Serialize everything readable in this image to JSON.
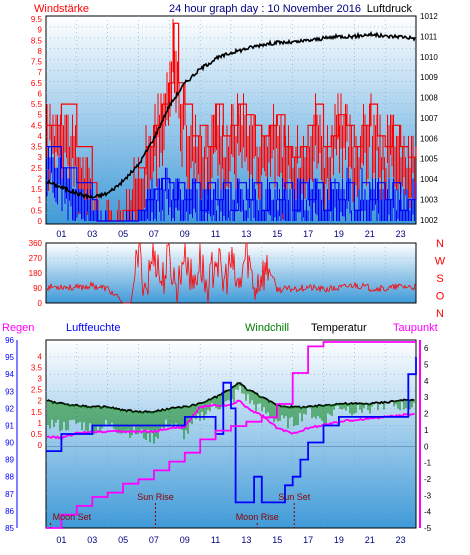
{
  "colors": {
    "red": "#ff0000",
    "blue": "#0000ff",
    "navy": "#000080",
    "black": "#000000",
    "green": "#008000",
    "magenta": "#ff00ff",
    "panel_top": "#ffffff",
    "panel_bottom": "#3f9ad8"
  },
  "chart_data": [
    {
      "type": "line",
      "id": "wind_pressure",
      "title": "24 hour graph day : 10 November 2016",
      "left_label": "Windstärke",
      "right_label": "Luftdruck",
      "x_ticks": [
        "01",
        "03",
        "05",
        "07",
        "09",
        "11",
        "13",
        "15",
        "17",
        "19",
        "21",
        "23"
      ],
      "y_left_ticks": [
        "0",
        "0.5",
        "1",
        "1.5",
        "2",
        "2.5",
        "3",
        "3.5",
        "4",
        "4.5",
        "5",
        "5.5",
        "6",
        "6.5",
        "7",
        "7.5",
        "8",
        "8.5",
        "9",
        "9.5"
      ],
      "y_right_ticks": [
        "1012",
        "1011",
        "1010",
        "1009",
        "1008",
        "1007",
        "1006",
        "1005",
        "1004",
        "1003",
        "1002"
      ],
      "y_left_range": [
        0,
        9.5
      ],
      "y_right_range": [
        1001.8,
        1012
      ],
      "x_range": [
        0,
        24
      ],
      "grid": true,
      "series": [
        {
          "color_key": "red",
          "style": "hatched",
          "x": [
            0,
            1,
            2,
            3,
            3.3,
            4,
            5,
            6,
            6.5,
            7,
            7.5,
            8,
            8.3,
            8.6,
            9,
            9.5,
            10,
            10.5,
            11,
            11.5,
            12,
            12.5,
            13,
            13.5,
            14,
            14.5,
            15,
            15.5,
            16,
            16.5,
            17,
            17.5,
            18,
            18.5,
            19,
            19.5,
            20,
            20.5,
            21,
            21.5,
            22,
            22.5,
            23,
            23.5,
            24
          ],
          "y": [
            4.5,
            5.5,
            3.5,
            1.8,
            0,
            0,
            0.5,
            2.5,
            3.5,
            4.5,
            5.5,
            6.5,
            9.3,
            6.5,
            5.5,
            4,
            4.5,
            3.5,
            5.5,
            4,
            4.5,
            5.5,
            5,
            4.5,
            4,
            4.5,
            5,
            3.5,
            3,
            3.5,
            4.5,
            5.5,
            3.5,
            4,
            5,
            4.5,
            3.5,
            4.5,
            5.5,
            4,
            3.5,
            4.5,
            3.5,
            3,
            3.5
          ]
        },
        {
          "color_key": "blue",
          "style": "hatched",
          "x": [
            0,
            1,
            2,
            3,
            3.3,
            4,
            5,
            6,
            6.5,
            7,
            7.5,
            8,
            8.3,
            8.6,
            9,
            9.5,
            10,
            10.5,
            11,
            11.5,
            12,
            12.5,
            13,
            13.5,
            14,
            14.5,
            15,
            15.5,
            16,
            16.5,
            17,
            17.5,
            18,
            18.5,
            19,
            19.5,
            20,
            20.5,
            21,
            21.5,
            22,
            22.5,
            23,
            23.5,
            24
          ],
          "y": [
            3.5,
            2.5,
            1.8,
            1,
            0,
            0,
            0,
            0.5,
            1,
            1.5,
            2,
            1.8,
            1,
            1.8,
            1,
            1.8,
            0.5,
            1.8,
            1,
            1.8,
            0.5,
            1.8,
            1,
            1.8,
            0.5,
            1.8,
            1,
            1.8,
            0.5,
            1.8,
            1,
            1.8,
            0.5,
            1.8,
            1,
            1.8,
            0.5,
            1.8,
            1,
            1.8,
            1,
            1.8,
            0.5,
            1,
            1.8
          ]
        },
        {
          "color_key": "black",
          "style": "line",
          "axis": "right",
          "x": [
            0,
            1,
            2,
            3,
            4,
            5,
            6,
            7,
            8,
            9,
            10,
            11,
            12,
            13,
            14,
            15,
            16,
            17,
            18,
            19,
            20,
            21,
            22,
            23,
            24
          ],
          "y": [
            1003.9,
            1003.6,
            1003.3,
            1003.1,
            1003.3,
            1003.9,
            1004.7,
            1006.0,
            1007.6,
            1008.7,
            1009.4,
            1009.9,
            1010.2,
            1010.4,
            1010.6,
            1010.7,
            1010.7,
            1010.8,
            1010.9,
            1011.0,
            1011.0,
            1011.1,
            1011.0,
            1011.0,
            1010.9
          ]
        }
      ]
    },
    {
      "type": "line",
      "id": "wind_direction",
      "right_labels": [
        "N",
        "W",
        "S",
        "O",
        "N"
      ],
      "y_ticks": [
        "360",
        "270",
        "180",
        "90",
        "0"
      ],
      "y_range": [
        0,
        360
      ],
      "x_range": [
        0,
        24
      ],
      "grid": true,
      "series": [
        {
          "color_key": "red",
          "style": "line",
          "x": [
            0,
            1,
            2,
            3,
            4,
            5,
            5.5,
            6,
            6.5,
            7,
            7.5,
            8,
            8.5,
            9,
            9.5,
            10,
            10.5,
            11,
            11.5,
            12,
            12.5,
            13,
            13.5,
            14,
            14.5,
            15,
            16,
            17,
            18,
            19,
            20,
            21,
            22,
            23,
            24
          ],
          "y": [
            95,
            100,
            90,
            105,
            85,
            0,
            0,
            300,
            80,
            330,
            120,
            280,
            60,
            340,
            100,
            260,
            50,
            300,
            110,
            240,
            70,
            320,
            90,
            180,
            200,
            80,
            85,
            95,
            80,
            90,
            110,
            90,
            85,
            100,
            95
          ]
        }
      ]
    },
    {
      "type": "line",
      "id": "humidity_temperature",
      "labels": {
        "regen": "Regen",
        "luftfeuchte": "Luftfeuchte",
        "windchill": "Windchill",
        "temperatur": "Temperatur",
        "taupunkt": "Taupunkt"
      },
      "x_ticks": [
        "01",
        "03",
        "05",
        "07",
        "09",
        "11",
        "13",
        "15",
        "17",
        "19",
        "21",
        "23"
      ],
      "y_left_ticks": [
        "96",
        "95",
        "94",
        "93",
        "92",
        "91",
        "90",
        "89",
        "88",
        "87",
        "86",
        "85"
      ],
      "y_left2_ticks": [
        "4",
        "3.5",
        "3",
        "2.5",
        "2",
        "1.5",
        "1",
        "0.5",
        "0"
      ],
      "y_right_ticks": [
        "6",
        "5",
        "4",
        "3",
        "2",
        "1",
        "0",
        "-1",
        "-2",
        "-3",
        "-4",
        "-5"
      ],
      "y_left_range": [
        85,
        96
      ],
      "y_right_range": [
        -5,
        6.5
      ],
      "x_range": [
        0,
        24
      ],
      "grid": true,
      "annotations": [
        {
          "text": "Moon Set",
          "x": 0.3
        },
        {
          "text": "Sun Rise",
          "x": 7.1
        },
        {
          "text": "Moon Rise",
          "x": 13.7
        },
        {
          "text": "Sun Set",
          "x": 16.1
        }
      ],
      "series": [
        {
          "name_key": "temperatur",
          "color_key": "black",
          "x": [
            0,
            1,
            2,
            3,
            4,
            5,
            6,
            7,
            8,
            9,
            10,
            11,
            12,
            12.5,
            13,
            13.5,
            14,
            15,
            16,
            17,
            18,
            19,
            20,
            21,
            22,
            23,
            24
          ],
          "y": [
            2.8,
            2.6,
            2.5,
            2.4,
            2.4,
            2.2,
            2.1,
            2.1,
            2.3,
            2.4,
            2.6,
            3.0,
            3.5,
            3.9,
            3.5,
            3.3,
            3.0,
            2.5,
            2.4,
            2.4,
            2.5,
            2.6,
            2.6,
            2.6,
            2.7,
            2.8,
            2.8
          ]
        },
        {
          "name_key": "windchill",
          "color_key": "green",
          "x": [
            0,
            1,
            2,
            3,
            4,
            5,
            6,
            7,
            8,
            9,
            10,
            11,
            12,
            12.5,
            13,
            13.5,
            14,
            15,
            16,
            17,
            18,
            19,
            20,
            21,
            22,
            23,
            24
          ],
          "y": [
            1.5,
            1.2,
            1.4,
            1.1,
            1.3,
            1.0,
            0.8,
            0.5,
            1.5,
            0.7,
            1.8,
            2.5,
            2.6,
            3.5,
            3.0,
            2.5,
            2.2,
            1.6,
            1.4,
            2.2,
            1.5,
            2.5,
            2.2,
            2.4,
            2.6,
            2.5,
            2.3
          ]
        },
        {
          "name_key": "taupunkt",
          "color_key": "magenta",
          "x": [
            0,
            1,
            2,
            3,
            4,
            5,
            6,
            7,
            8,
            9,
            10,
            11,
            12,
            12.5,
            13,
            13.5,
            14,
            15,
            16,
            17,
            18,
            19,
            20,
            21,
            22,
            23,
            24
          ],
          "y": [
            0.6,
            0.5,
            0.8,
            0.9,
            0.9,
            0.9,
            0.9,
            0.9,
            1.1,
            1.2,
            2.4,
            2.5,
            2.5,
            2.8,
            2.4,
            2.1,
            1.9,
            1.1,
            0.8,
            1.1,
            1.3,
            1.5,
            1.6,
            1.7,
            1.8,
            1.9,
            2.0
          ]
        },
        {
          "name_key": "luftfeuchte",
          "color_key": "blue",
          "axis": "left",
          "x": [
            0,
            1,
            2,
            3,
            4,
            5,
            6,
            7,
            8,
            9,
            10,
            11,
            11.5,
            12,
            12.3,
            12.5,
            13,
            13.5,
            14,
            14.5,
            15,
            15.5,
            16,
            16.5,
            17,
            18,
            19,
            20,
            21,
            22,
            23,
            23.5,
            24
          ],
          "y": [
            89.5,
            90.5,
            90.5,
            91,
            91,
            91,
            91,
            91,
            91,
            91.5,
            91.5,
            90.5,
            93.5,
            92,
            86.5,
            86.5,
            86.5,
            88,
            86.5,
            86.5,
            86.5,
            87.5,
            88,
            89,
            90,
            91,
            91.5,
            91.5,
            91.5,
            91.5,
            91.5,
            94,
            95
          ]
        },
        {
          "name_key": "regen",
          "color_key": "magenta",
          "axis": "left2",
          "x": [
            0,
            1,
            2,
            3,
            4,
            5,
            6,
            7,
            8,
            9,
            10,
            11,
            12,
            13,
            14,
            15,
            16,
            17,
            18,
            19,
            20,
            21,
            22,
            23,
            24
          ],
          "y": [
            0,
            0.3,
            0.5,
            0.7,
            0.8,
            1.0,
            1.1,
            1.3,
            1.5,
            1.7,
            2.0,
            2.2,
            2.3,
            2.4,
            2.5,
            2.8,
            3.5,
            4.1,
            4.2,
            4.2,
            4.2,
            4.2,
            4.2,
            4.2,
            4.2
          ]
        }
      ]
    }
  ]
}
